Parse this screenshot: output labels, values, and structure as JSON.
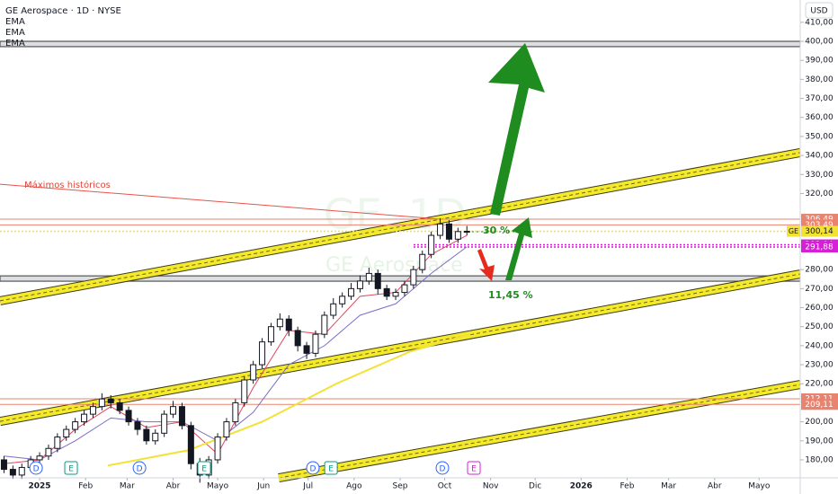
{
  "chart_data": {
    "type": "candlestick",
    "title": "GE Aerospace · 1D · NYSE",
    "currency": "USD",
    "x": [
      -24,
      -18,
      -12,
      -6,
      0,
      6,
      12,
      18,
      24,
      30,
      36,
      42,
      48,
      54,
      60,
      66,
      72,
      78,
      84,
      90,
      96,
      102,
      108,
      114,
      120,
      126,
      132,
      138,
      144,
      150,
      156,
      162,
      168,
      174,
      180,
      186,
      192,
      198,
      204,
      210,
      216,
      222,
      228,
      234,
      240,
      246,
      252,
      258,
      264,
      270,
      276,
      282,
      288
    ],
    "open": [
      180,
      175,
      172,
      176,
      180,
      182,
      186,
      192,
      196,
      200,
      204,
      208,
      212,
      210,
      206,
      200,
      196,
      190,
      194,
      204,
      208,
      198,
      178,
      172,
      180,
      192,
      200,
      210,
      222,
      230,
      242,
      250,
      254,
      248,
      240,
      236,
      246,
      256,
      262,
      266,
      270,
      274,
      278,
      270,
      266,
      268,
      272,
      280,
      288,
      298,
      304,
      296,
      300
    ],
    "high": [
      182,
      177,
      178,
      182,
      184,
      188,
      194,
      198,
      202,
      206,
      210,
      215,
      214,
      212,
      208,
      202,
      198,
      196,
      206,
      211,
      210,
      200,
      181,
      182,
      194,
      202,
      212,
      224,
      232,
      244,
      252,
      257,
      256,
      250,
      242,
      248,
      258,
      265,
      268,
      273,
      277,
      281,
      280,
      272,
      270,
      274,
      282,
      290,
      300,
      307,
      306,
      302,
      303
    ],
    "low": [
      173,
      170,
      170,
      174,
      178,
      180,
      184,
      190,
      194,
      198,
      202,
      206,
      207,
      204,
      198,
      193,
      188,
      188,
      192,
      202,
      196,
      175,
      168,
      170,
      178,
      190,
      198,
      208,
      220,
      228,
      240,
      248,
      245,
      237,
      233,
      234,
      244,
      254,
      260,
      264,
      268,
      272,
      267,
      264,
      264,
      266,
      270,
      278,
      286,
      296,
      294,
      294,
      298
    ],
    "close": [
      175,
      172,
      176,
      180,
      182,
      186,
      192,
      196,
      200,
      204,
      208,
      212,
      210,
      206,
      200,
      196,
      190,
      194,
      204,
      208,
      198,
      178,
      172,
      180,
      192,
      200,
      210,
      222,
      230,
      242,
      250,
      254,
      248,
      240,
      236,
      246,
      256,
      262,
      266,
      270,
      274,
      278,
      270,
      266,
      268,
      272,
      280,
      288,
      298,
      304,
      296,
      300,
      300.14
    ],
    "xlim": [
      -26.7,
      512.7
    ],
    "xticks": [
      {
        "value": 0,
        "label": "2025"
      },
      {
        "value": 31,
        "label": "Feb"
      },
      {
        "value": 59,
        "label": "Mar"
      },
      {
        "value": 90,
        "label": "Abr"
      },
      {
        "value": 120,
        "label": "Mayo"
      },
      {
        "value": 151,
        "label": "Jun"
      },
      {
        "value": 181,
        "label": "Jul"
      },
      {
        "value": 212,
        "label": "Ago"
      },
      {
        "value": 243,
        "label": "Sep"
      },
      {
        "value": 273,
        "label": "Oct"
      },
      {
        "value": 304,
        "label": "Nov"
      },
      {
        "value": 334,
        "label": "Dic"
      },
      {
        "value": 365,
        "label": "2026"
      },
      {
        "value": 396,
        "label": "Feb"
      },
      {
        "value": 424,
        "label": "Mar"
      },
      {
        "value": 455,
        "label": "Abr"
      },
      {
        "value": 485,
        "label": "Mayo"
      }
    ],
    "ylim": [
      170.54,
      421.72
    ],
    "yticks": [
      {
        "value": 180,
        "label": "180,00"
      },
      {
        "value": 190,
        "label": "190,00"
      },
      {
        "value": 200,
        "label": "200,00"
      },
      {
        "value": 220,
        "label": "220,00"
      },
      {
        "value": 230,
        "label": "230,00"
      },
      {
        "value": 240,
        "label": "240,00"
      },
      {
        "value": 250,
        "label": "250,00"
      },
      {
        "value": 260,
        "label": "260,00"
      },
      {
        "value": 270,
        "label": "270,00"
      },
      {
        "value": 280,
        "label": "280,00"
      },
      {
        "value": 320,
        "label": "320,00"
      },
      {
        "value": 330,
        "label": "330,00"
      },
      {
        "value": 340,
        "label": "340,00"
      },
      {
        "value": 350,
        "label": "350,00"
      },
      {
        "value": 360,
        "label": "360,00"
      },
      {
        "value": 370,
        "label": "370,00"
      },
      {
        "value": 380,
        "label": "380,00"
      },
      {
        "value": 390,
        "label": "390,00"
      },
      {
        "value": 400,
        "label": "400,00"
      },
      {
        "value": 410,
        "label": "410,00"
      }
    ],
    "series": [
      {
        "name": "EMA",
        "color": "#e0455a",
        "x": [
          -24,
          0,
          24,
          48,
          72,
          96,
          120,
          144,
          168,
          192,
          216,
          240,
          264,
          288
        ],
        "values": [
          178,
          180,
          196,
          208,
          197,
          200,
          183,
          218,
          248,
          246,
          266,
          268,
          288,
          298
        ]
      },
      {
        "name": "EMA",
        "color": "#7b6fc4",
        "x": [
          -24,
          0,
          24,
          48,
          72,
          96,
          120,
          144,
          168,
          192,
          216,
          240,
          264,
          288
        ],
        "values": [
          182,
          180,
          190,
          202,
          200,
          200,
          190,
          205,
          230,
          240,
          256,
          262,
          278,
          292
        ]
      },
      {
        "name": "EMA",
        "color": "#f2e234",
        "x": [
          46,
          100,
          150,
          200,
          250,
          290
        ],
        "values": [
          177,
          185,
          200,
          220,
          237,
          246
        ]
      }
    ],
    "levels": [
      {
        "value": 306.49,
        "label": "306,49",
        "color": "#e8836f",
        "style": "solid"
      },
      {
        "value": 303.49,
        "label": "303,49",
        "color": "#e8836f",
        "style": "solid"
      },
      {
        "value": 300.14,
        "label": "300,14",
        "color": "#f2e234",
        "style": "dotted",
        "tag": "GE"
      },
      {
        "value": 293.04,
        "label": "293,04",
        "color": "#d61fd6",
        "style": "dotted"
      },
      {
        "value": 291.88,
        "label": "291,88",
        "color": "#d61fd6",
        "style": "dotted"
      },
      {
        "value": 212.11,
        "label": "212,11",
        "color": "#e8836f",
        "style": "solid"
      },
      {
        "value": 209.11,
        "label": "209,11",
        "color": "#e8836f",
        "style": "solid"
      }
    ],
    "zones": [
      [
        397.2,
        400
      ],
      [
        273.9,
        276.7
      ]
    ],
    "channels": [
      {
        "x": [
          -26.7,
          512.7
        ],
        "values": [
          263.6,
          341.5
        ]
      },
      {
        "x": [
          -26.7,
          512.7
        ],
        "values": [
          200.2,
          277.7
        ]
      },
      {
        "x": [
          161.2,
          512.7
        ],
        "values": [
          170.5,
          219.6
        ]
      }
    ],
    "trendline": {
      "x": [
        -26.7,
        270.3
      ],
      "values": [
        324.9,
        306.5
      ]
    },
    "events": [
      {
        "label": "D",
        "x": -2.4
      },
      {
        "label": "D",
        "x": 67.3
      },
      {
        "label": "D",
        "x": 184.2
      },
      {
        "label": "D",
        "x": 271.5
      },
      {
        "label": "E",
        "x": 21.2
      },
      {
        "label": "E",
        "x": 110.9
      },
      {
        "label": "E",
        "x": 196.4
      },
      {
        "label": "E",
        "x": 292.7
      }
    ],
    "annotations": [
      "Máximos históricos",
      "30 %",
      "11,45 %"
    ],
    "watermark": "GE, 1D",
    "watermark_sub": "GE Aerospace"
  }
}
